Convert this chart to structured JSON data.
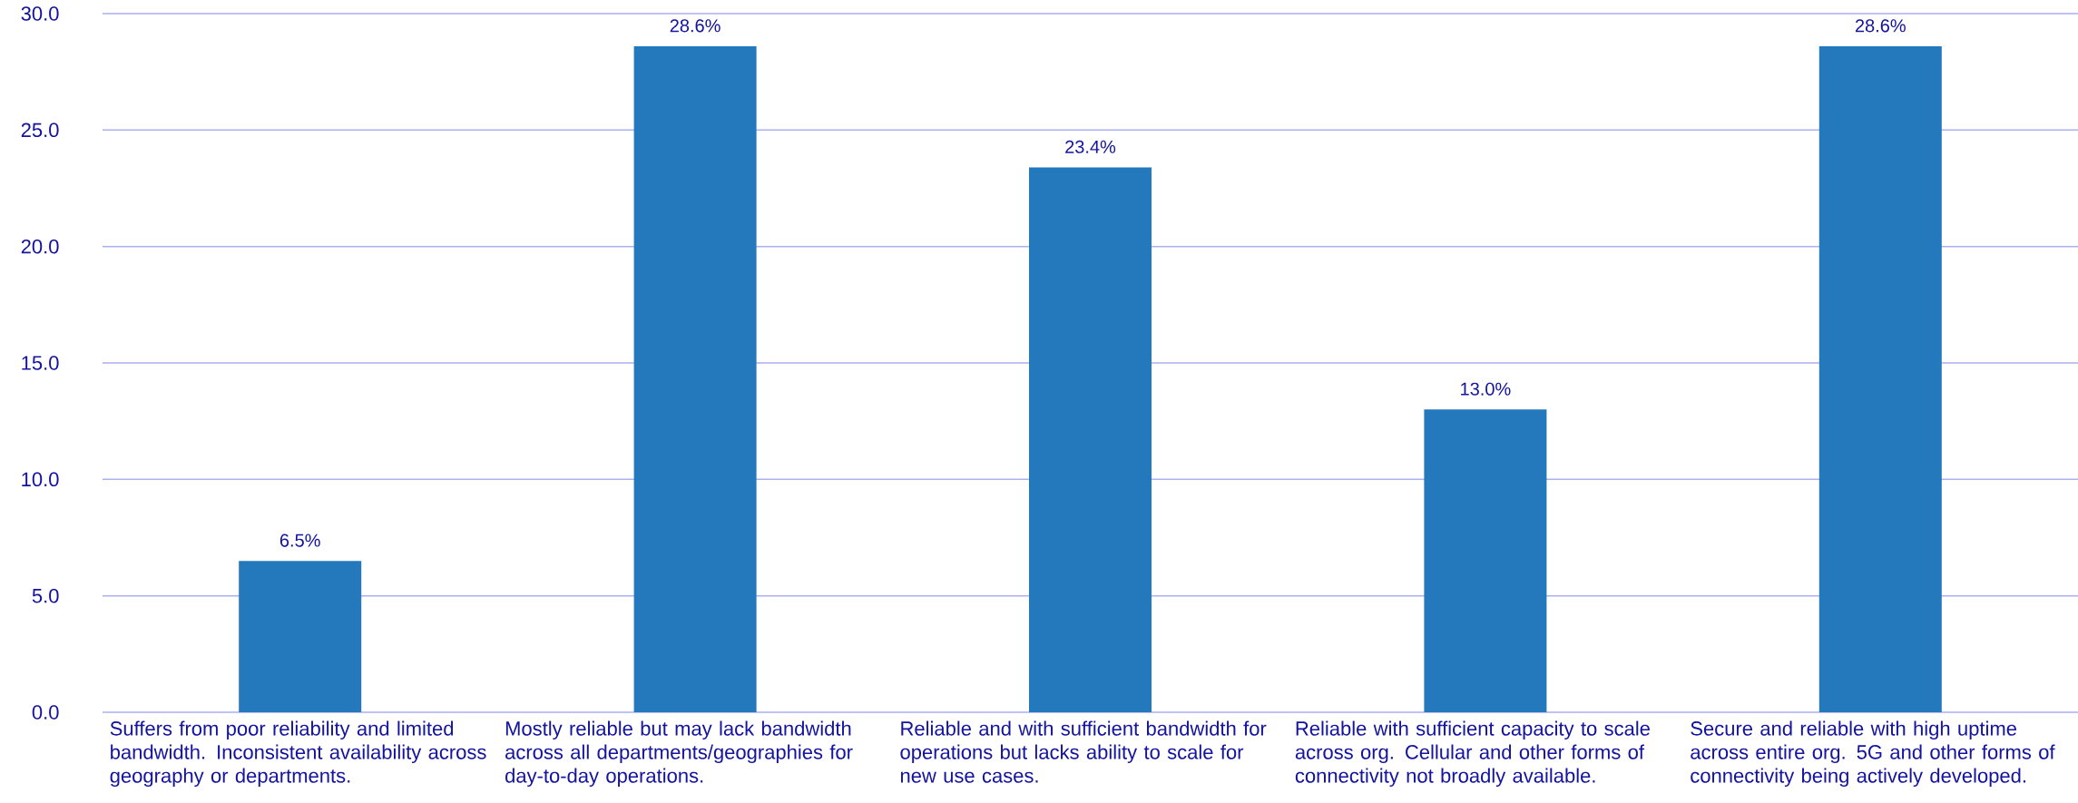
{
  "chart_data": {
    "type": "bar",
    "categories": [
      "Suffers from poor reliability and limited bandwidth. Inconsistent availability across geography or departments.",
      "Mostly reliable but may lack bandwidth across all departments/geographies for day-to-day operations.",
      "Reliable and with sufficient bandwidth for operations but lacks ability to scale for new use cases.",
      "Reliable with sufficient capacity to scale across org. Cellular and other forms of connectivity not broadly available.",
      "Secure and reliable with high uptime across entire org. 5G and other forms of connectivity being actively developed."
    ],
    "values": [
      6.5,
      28.6,
      23.4,
      13.0,
      28.6
    ],
    "value_labels": [
      "6.5%",
      "28.6%",
      "23.4%",
      "13.0%",
      "28.6%"
    ],
    "color": "#2479bd",
    "ylim": [
      0,
      30
    ],
    "yticks": [
      {
        "value": 0,
        "label": "0.0"
      },
      {
        "value": 5,
        "label": "5.0"
      },
      {
        "value": 10,
        "label": "10.0"
      },
      {
        "value": 15,
        "label": "15.0"
      },
      {
        "value": 20,
        "label": "20.0"
      },
      {
        "value": 25,
        "label": "25.0"
      },
      {
        "value": 30,
        "label": "30.0"
      }
    ],
    "grid": "y"
  }
}
